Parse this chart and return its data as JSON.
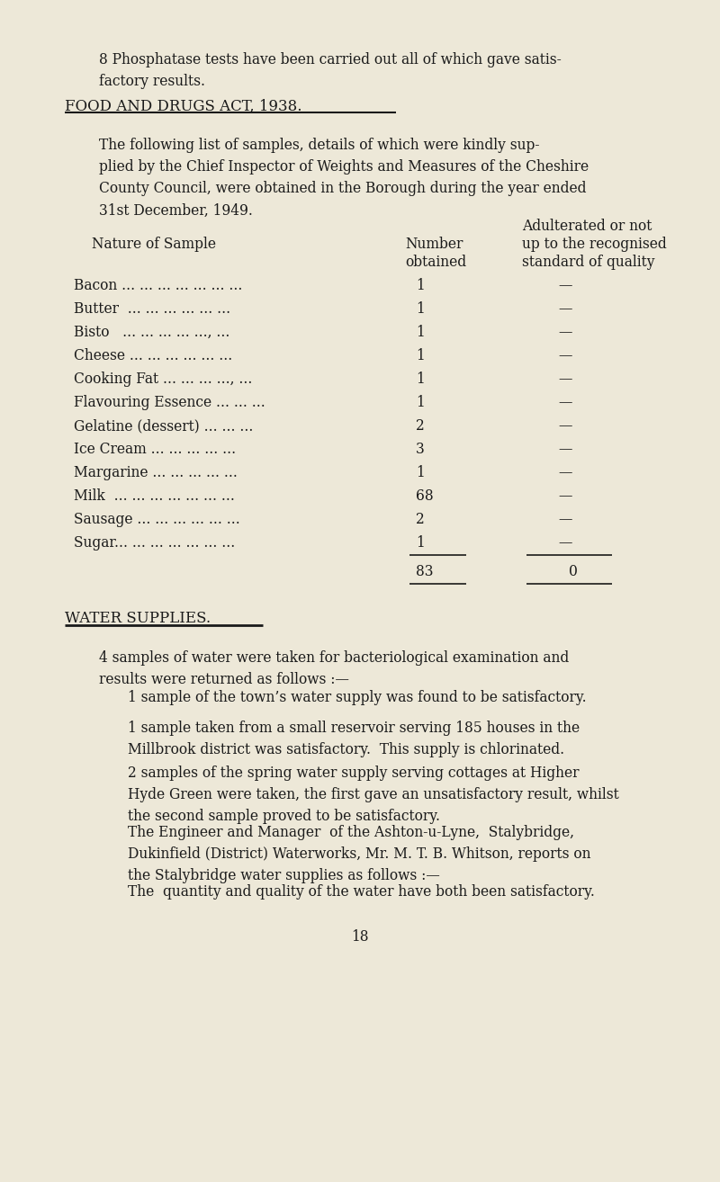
{
  "bg_color": "#ede8d8",
  "text_color": "#1a1a1a",
  "page_number": "18",
  "para1": "8 Phosphatase tests have been carried out all of which gave satis-\nfactory results.",
  "section1_title": "FOOD AND DRUGS ACT, 1938.",
  "para2": "The following list of samples, details of which were kindly sup-\nplied by the Chief Inspector of Weights and Measures of the Cheshire\nCounty Council, were obtained in the Borough during the year ended\n31st December, 1949.",
  "table_header_col3a": "Adulterated or not",
  "table_header_col1": "Nature of Sample",
  "table_header_col2a": "Number",
  "table_header_col2b": "obtained",
  "table_header_col3b": "up to the recognised",
  "table_header_col3c": "standard of quality",
  "table_rows": [
    [
      "Bacon ... ... ... ... ... ... ...",
      "1",
      "—"
    ],
    [
      "Butter  ... ... ... ... ... ...",
      "1",
      "—"
    ],
    [
      "Bisto   ... ... ... ... ..., ...",
      "1",
      "—"
    ],
    [
      "Cheese ... ... ... ... ... ...",
      "1",
      "—"
    ],
    [
      "Cooking Fat ... ... ... ..., ...",
      "1",
      "—"
    ],
    [
      "Flavouring Essence ... ... ...",
      "1",
      "—"
    ],
    [
      "Gelatine (dessert) ... ... ...",
      "2",
      "—"
    ],
    [
      "Ice Cream ... ... ... ... ...",
      "3",
      "—"
    ],
    [
      "Margarine ... ... ... ... ...",
      "1",
      "—"
    ],
    [
      "Milk  ... ... ... ... ... ... ...",
      "68",
      "—"
    ],
    [
      "Sausage ... ... ... ... ... ...",
      "2",
      "—"
    ],
    [
      "Sugar... ... ... ... ... ... ...",
      "1",
      "—"
    ]
  ],
  "table_total_number": "83",
  "table_total_adulterated": "0",
  "section2_title": "WATER SUPPLIES.",
  "para3": "4 samples of water were taken for bacteriological examination and\nresults were returned as follows :—",
  "para4": "1 sample of the town’s water supply was found to be satisfactory.",
  "para5": "1 sample taken from a small reservoir serving 185 houses in the\nMillbrook district was satisfactory.  This supply is chlorinated.",
  "para6": "2 samples of the spring water supply serving cottages at Higher\nHyde Green were taken, the first gave an unsatisfactory result, whilst\nthe second sample proved to be satisfactory.",
  "para7": "The Engineer and Manager  of the Ashton-u-Lyne,  Stalybridge,\nDukinfield (District) Waterworks, Mr. M. T. B. Whitson, reports on\nthe Stalybridge water supplies as follows :—",
  "para8": "The  quantity and quality of the water have both been satisfactory.",
  "figwidth": 8.0,
  "figheight": 13.14,
  "dpi": 100
}
